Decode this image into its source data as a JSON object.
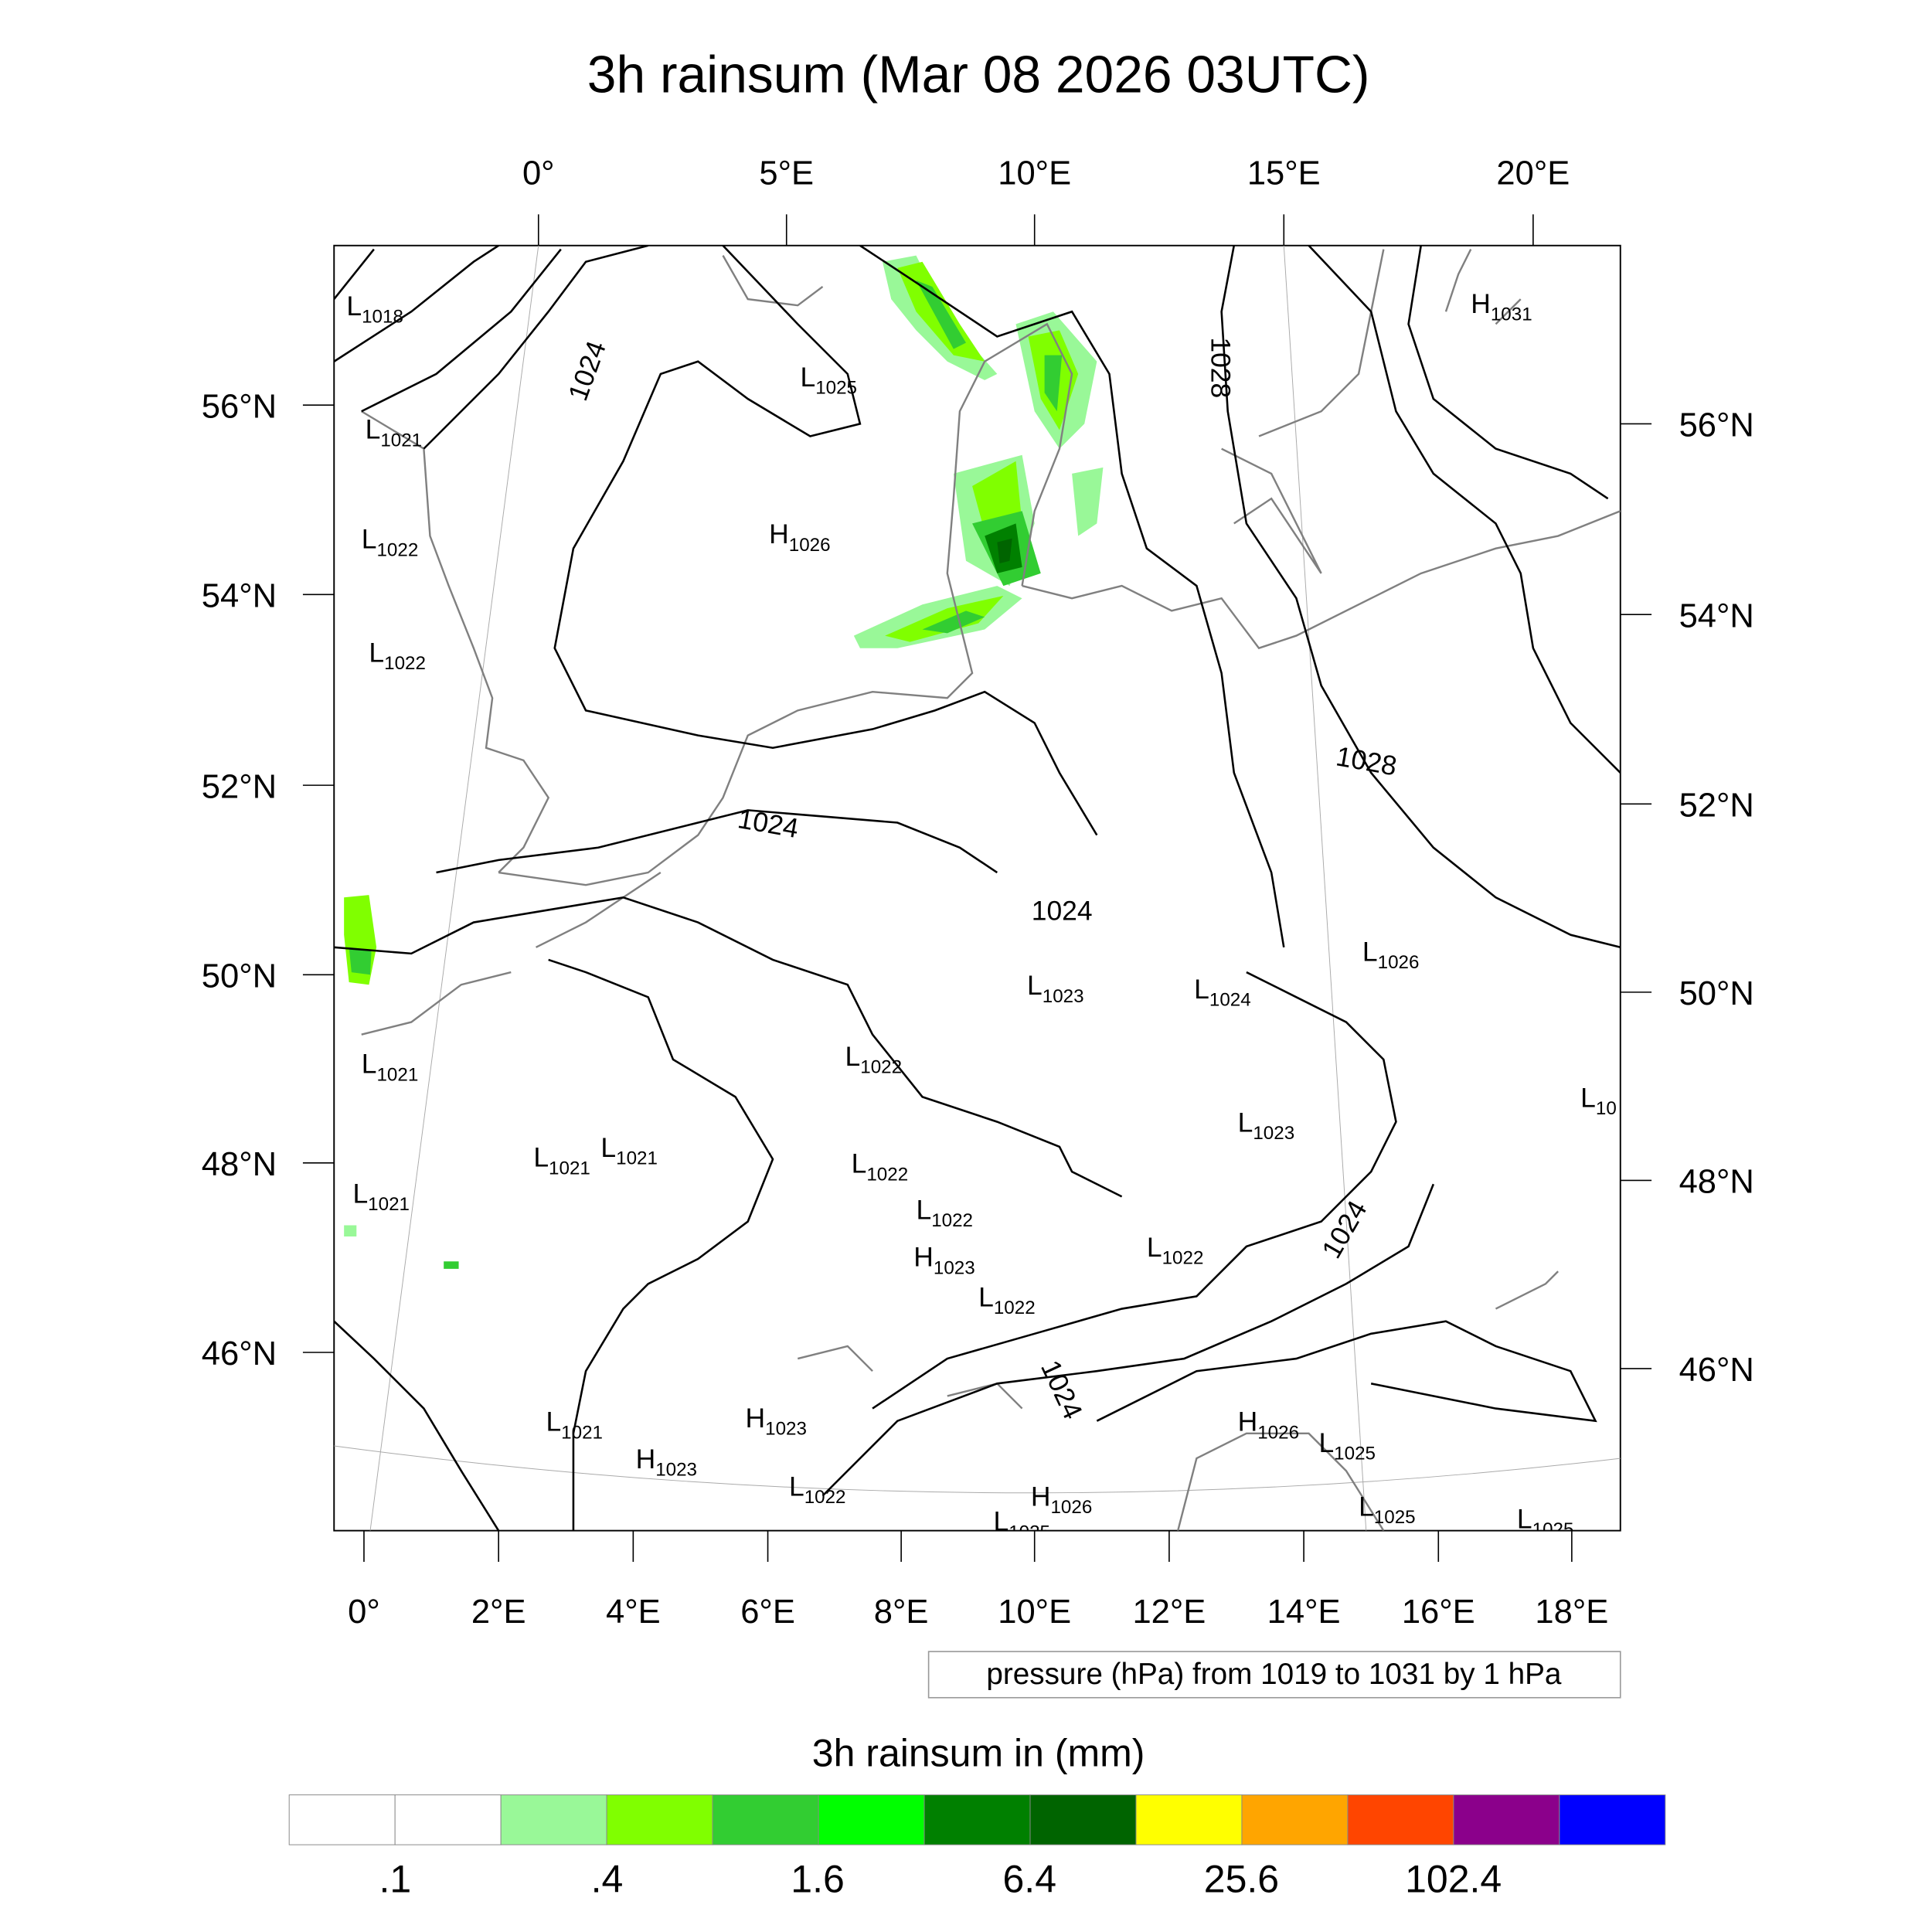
{
  "title": "3h rainsum (Mar 08 2026 03UTC)",
  "top_lon_ticks": [
    "0°",
    "5°E",
    "10°E",
    "15°E",
    "20°E"
  ],
  "bottom_lon_ticks": [
    "0°",
    "2°E",
    "4°E",
    "6°E",
    "8°E",
    "10°E",
    "12°E",
    "14°E",
    "16°E",
    "18°E"
  ],
  "left_lat_ticks": [
    "56°N",
    "54°N",
    "52°N",
    "50°N",
    "48°N",
    "46°N"
  ],
  "right_lat_ticks": [
    "56°N",
    "54°N",
    "52°N",
    "50°N",
    "48°N",
    "46°N"
  ],
  "pressure_note": "pressure (hPa) from 1019 to 1031 by 1 hPa",
  "colorbar": {
    "title": "3h rainsum in (mm)",
    "labels": [
      ".1",
      ".4",
      "1.6",
      "6.4",
      "25.6",
      "102.4"
    ],
    "colors": [
      "#ffffff",
      "#ffffff",
      "#99f898",
      "#80ff00",
      "#32cd32",
      "#00ff00",
      "#008000",
      "#006400",
      "#ffff00",
      "#ffa500",
      "#ff4500",
      "#8b008b",
      "#0000ff"
    ]
  },
  "isobar_labels": [
    "1024",
    "1028",
    "1028",
    "1024",
    "1024",
    "1024",
    "1024"
  ],
  "pressure_centers": [
    {
      "t": "L",
      "v": "1018"
    },
    {
      "t": "L",
      "v": "1021"
    },
    {
      "t": "L",
      "v": "1022"
    },
    {
      "t": "L",
      "v": "1022"
    },
    {
      "t": "H",
      "v": "1026"
    },
    {
      "t": "L",
      "v": "1025"
    },
    {
      "t": "H",
      "v": "1031"
    },
    {
      "t": "L",
      "v": "1021"
    },
    {
      "t": "L",
      "v": "1021"
    },
    {
      "t": "L",
      "v": "1021"
    },
    {
      "t": "L",
      "v": "1021"
    },
    {
      "t": "L",
      "v": "1022"
    },
    {
      "t": "L",
      "v": "1022"
    },
    {
      "t": "L",
      "v": "1022"
    },
    {
      "t": "H",
      "v": "1023"
    },
    {
      "t": "L",
      "v": "1022"
    },
    {
      "t": "L",
      "v": "1023"
    },
    {
      "t": "L",
      "v": "1024"
    },
    {
      "t": "L",
      "v": "1023"
    },
    {
      "t": "L",
      "v": "1026"
    },
    {
      "t": "L",
      "v": "1022"
    },
    {
      "t": "L",
      "v": "10"
    },
    {
      "t": "L",
      "v": "1021"
    },
    {
      "t": "H",
      "v": "1023"
    },
    {
      "t": "H",
      "v": "1023"
    },
    {
      "t": "L",
      "v": "1022"
    },
    {
      "t": "H",
      "v": "1026"
    },
    {
      "t": "L",
      "v": "1025"
    },
    {
      "t": "H",
      "v": "1026"
    },
    {
      "t": "L",
      "v": "1025"
    },
    {
      "t": "L",
      "v": "1025"
    },
    {
      "t": "L",
      "v": "1025"
    }
  ]
}
